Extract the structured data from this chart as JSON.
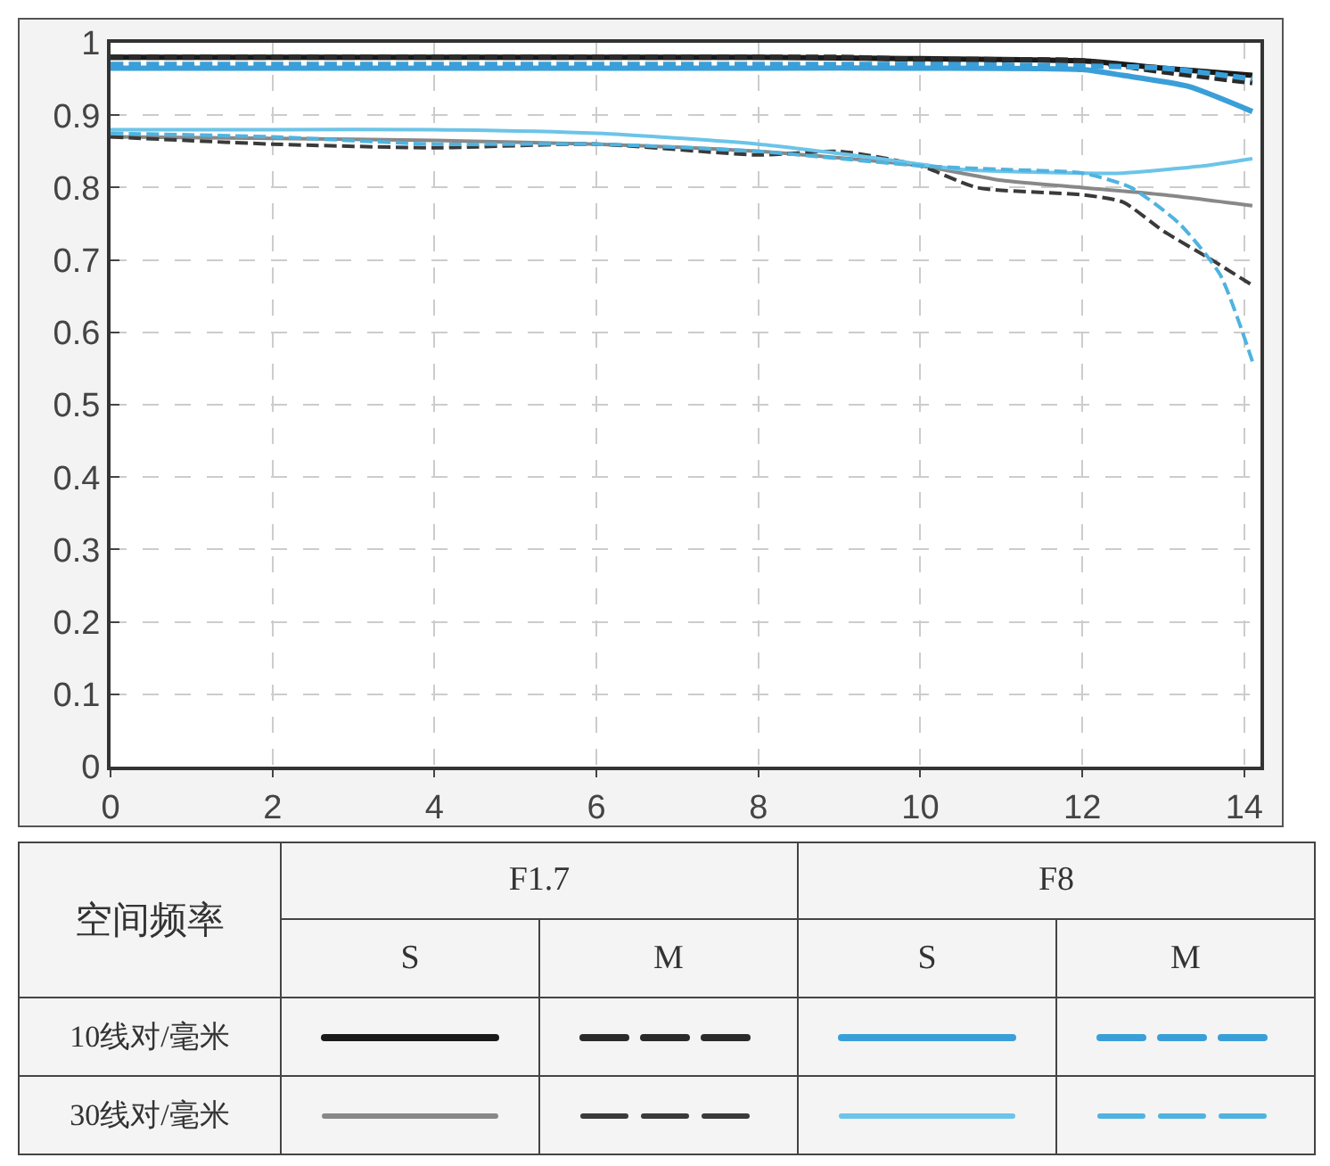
{
  "chart_data": {
    "type": "line",
    "xlim": [
      0,
      14.2
    ],
    "xticks": [
      0,
      2,
      4,
      6,
      8,
      10,
      12,
      14
    ],
    "ylim": [
      0,
      1
    ],
    "yticks": [
      0,
      0.1,
      0.2,
      0.3,
      0.4,
      0.5,
      0.6,
      0.7,
      0.8,
      0.9,
      1
    ],
    "grid": true,
    "marker": "none",
    "series": [
      {
        "color": "#1a1a1a",
        "line_style": "solid",
        "x": [
          0,
          2,
          4,
          6,
          8,
          10,
          12,
          13,
          14.1
        ],
        "values": [
          0.98,
          0.98,
          0.98,
          0.98,
          0.98,
          0.978,
          0.975,
          0.965,
          0.955
        ]
      },
      {
        "color": "#2a2a2a",
        "line_style": "dashed",
        "x": [
          0,
          2,
          4,
          6,
          8,
          9,
          10,
          12,
          13,
          14.1
        ],
        "values": [
          0.98,
          0.98,
          0.98,
          0.98,
          0.98,
          0.98,
          0.977,
          0.975,
          0.96,
          0.945
        ]
      },
      {
        "color": "#3a9fd8",
        "line_style": "solid",
        "x": [
          0,
          2,
          4,
          6,
          8,
          10,
          12,
          12.5,
          13.3,
          14.1
        ],
        "values": [
          0.965,
          0.965,
          0.965,
          0.965,
          0.965,
          0.965,
          0.963,
          0.955,
          0.94,
          0.905
        ]
      },
      {
        "color": "#3a9fd8",
        "line_style": "dashed",
        "x": [
          0,
          2,
          4,
          6,
          8,
          10,
          12,
          13,
          14.1
        ],
        "values": [
          0.97,
          0.97,
          0.97,
          0.97,
          0.97,
          0.97,
          0.968,
          0.965,
          0.95
        ]
      },
      {
        "color": "#888888",
        "line_style": "solid",
        "x": [
          0,
          2,
          4,
          6,
          8,
          10,
          11,
          12,
          13,
          14.1
        ],
        "values": [
          0.87,
          0.868,
          0.865,
          0.86,
          0.85,
          0.83,
          0.81,
          0.8,
          0.79,
          0.775
        ]
      },
      {
        "color": "#3a3a3a",
        "line_style": "dashed",
        "x": [
          0,
          2,
          4,
          6,
          8,
          9,
          10,
          10.7,
          12,
          12.5,
          13,
          13.6,
          14.1
        ],
        "values": [
          0.87,
          0.86,
          0.855,
          0.86,
          0.845,
          0.85,
          0.83,
          0.8,
          0.79,
          0.78,
          0.74,
          0.7,
          0.665
        ]
      },
      {
        "color": "#6cc4e8",
        "line_style": "solid",
        "x": [
          0,
          2,
          4,
          6,
          8,
          9.5,
          10.5,
          12,
          12.5,
          13.5,
          14.1
        ],
        "values": [
          0.88,
          0.88,
          0.88,
          0.875,
          0.86,
          0.84,
          0.825,
          0.82,
          0.82,
          0.83,
          0.84
        ]
      },
      {
        "color": "#4fb3e0",
        "line_style": "dashed",
        "x": [
          0,
          2,
          4,
          6,
          8,
          9,
          10,
          11,
          12,
          12.6,
          13.2,
          13.7,
          14.1
        ],
        "values": [
          0.875,
          0.87,
          0.86,
          0.86,
          0.85,
          0.84,
          0.83,
          0.825,
          0.82,
          0.8,
          0.75,
          0.68,
          0.56
        ]
      }
    ],
    "annotations": [
      "空间频率",
      "F1.7",
      "F8",
      "S",
      "M",
      "S",
      "M",
      "10线对/毫米",
      "30线对/毫米"
    ]
  }
}
